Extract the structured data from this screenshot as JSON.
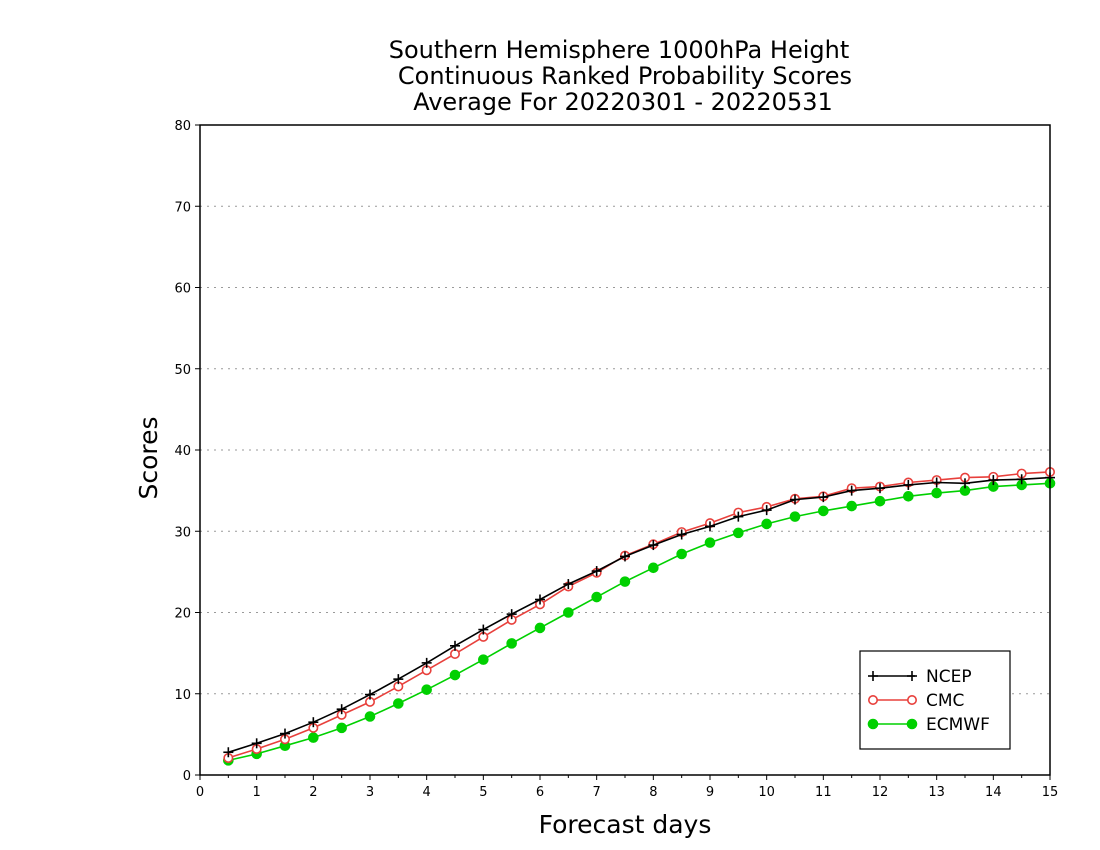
{
  "chart_data": {
    "type": "line",
    "title_lines": [
      "Southern Hemisphere 1000hPa Height",
      "Continuous Ranked Probability Scores",
      "Average For 20220301 - 20220531"
    ],
    "xlabel": "Forecast days",
    "ylabel": "Scores",
    "xlim": [
      0,
      15
    ],
    "ylim": [
      0,
      80
    ],
    "x_ticks": [
      "0",
      "1",
      "2",
      "3",
      "4",
      "5",
      "6",
      "7",
      "8",
      "9",
      "10",
      "11",
      "12",
      "13",
      "14",
      "15"
    ],
    "y_ticks": [
      "0",
      "10",
      "20",
      "30",
      "40",
      "50",
      "60",
      "70",
      "80"
    ],
    "grid": "horizontal dotted",
    "legend_position": "bottom-right",
    "x": [
      0.5,
      1,
      1.5,
      2,
      2.5,
      3,
      3.5,
      4,
      4.5,
      5,
      5.5,
      6,
      6.5,
      7,
      7.5,
      8,
      8.5,
      9,
      9.5,
      10,
      10.5,
      11,
      11.5,
      12,
      12.5,
      13,
      13.5,
      14,
      14.5,
      15
    ],
    "series": [
      {
        "name": "NCEP",
        "color": "#000000",
        "marker": "plus",
        "values": [
          2.8,
          3.9,
          5.1,
          6.5,
          8.1,
          9.9,
          11.8,
          13.8,
          15.9,
          17.9,
          19.8,
          21.6,
          23.5,
          25.1,
          26.9,
          28.3,
          29.6,
          30.6,
          31.8,
          32.6,
          33.9,
          34.2,
          35.0,
          35.3,
          35.7,
          36.0,
          35.9,
          36.3,
          36.4,
          36.6
        ]
      },
      {
        "name": "CMC",
        "color": "#e8403c",
        "marker": "open-circle",
        "values": [
          2.1,
          3.2,
          4.4,
          5.8,
          7.4,
          9.0,
          10.9,
          12.9,
          14.9,
          17.0,
          19.1,
          21.0,
          23.2,
          24.9,
          27.0,
          28.4,
          29.9,
          31.0,
          32.3,
          33.0,
          34.0,
          34.3,
          35.3,
          35.5,
          36.0,
          36.3,
          36.6,
          36.7,
          37.1,
          37.3
        ]
      },
      {
        "name": "ECMWF",
        "color": "#00d000",
        "marker": "filled-circle",
        "values": [
          1.8,
          2.6,
          3.6,
          4.6,
          5.8,
          7.2,
          8.8,
          10.5,
          12.3,
          14.2,
          16.2,
          18.1,
          20.0,
          21.9,
          23.8,
          25.5,
          27.2,
          28.6,
          29.8,
          30.9,
          31.8,
          32.5,
          33.1,
          33.7,
          34.3,
          34.7,
          35.0,
          35.5,
          35.7,
          35.9
        ]
      }
    ]
  }
}
